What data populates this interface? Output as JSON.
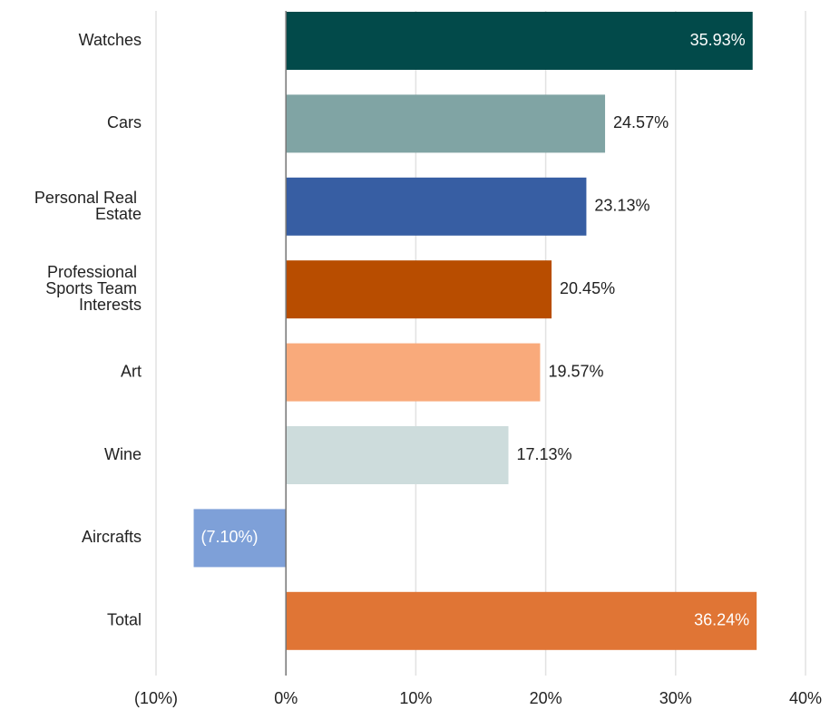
{
  "chart_data": {
    "type": "bar",
    "orientation": "horizontal",
    "categories": [
      "Watches",
      "Cars",
      "Personal Real Estate",
      "Professional Sports Team Interests",
      "Art",
      "Wine",
      "Aircrafts",
      "Total"
    ],
    "values": [
      35.93,
      24.57,
      23.13,
      20.45,
      19.57,
      17.13,
      -7.1,
      36.24
    ],
    "value_labels": [
      "35.93%",
      "24.57%",
      "23.13%",
      "20.45%",
      "19.57%",
      "17.13%",
      "(7.10%)",
      "36.24%"
    ],
    "colors": [
      "#024a4a",
      "#80a4a4",
      "#375ea3",
      "#b84d00",
      "#f9aa7b",
      "#cddcdc",
      "#7ea0d8",
      "#e07535"
    ],
    "xlim": [
      -10,
      40
    ],
    "xticks": [
      {
        "value": -10,
        "label": "(10%)"
      },
      {
        "value": 0,
        "label": "0%"
      },
      {
        "value": 10,
        "label": "10%"
      },
      {
        "value": 20,
        "label": "20%"
      },
      {
        "value": 30,
        "label": "30%"
      },
      {
        "value": 40,
        "label": "40%"
      }
    ],
    "grid": true
  }
}
